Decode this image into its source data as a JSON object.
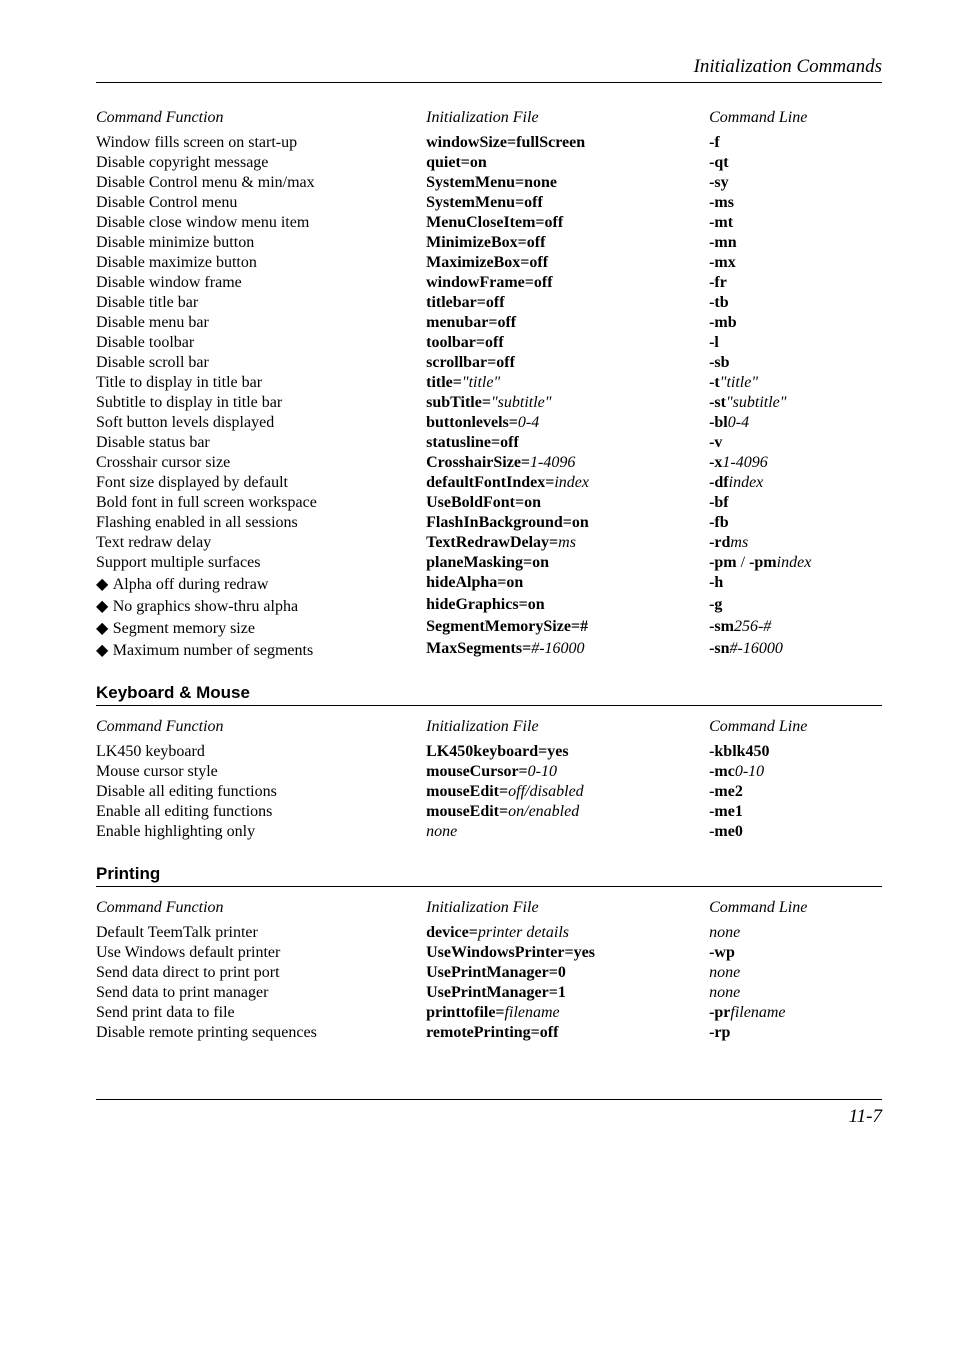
{
  "running_head": "Initialization Commands",
  "cols": {
    "c1": "Command Function",
    "c2": "Initialization File",
    "c3": "Command Line"
  },
  "main": [
    {
      "f": {
        "t": "Window fills screen on start-up"
      },
      "i": {
        "b": "windowSize=fullScreen"
      },
      "c": {
        "b": "-f"
      }
    },
    {
      "f": {
        "t": "Disable copyright message"
      },
      "i": {
        "b": "quiet=on"
      },
      "c": {
        "b": "-qt"
      }
    },
    {
      "f": {
        "t": "Disable Control menu & min/max"
      },
      "i": {
        "b": "SystemMenu=none"
      },
      "c": {
        "b": "-sy"
      }
    },
    {
      "f": {
        "t": "Disable Control menu"
      },
      "i": {
        "b": "SystemMenu=off"
      },
      "c": {
        "b": "-ms"
      }
    },
    {
      "f": {
        "t": "Disable close window menu item"
      },
      "i": {
        "b": "MenuCloseItem=off"
      },
      "c": {
        "b": "-mt"
      }
    },
    {
      "f": {
        "t": "Disable minimize button"
      },
      "i": {
        "b": "MinimizeBox=off"
      },
      "c": {
        "b": "-mn"
      }
    },
    {
      "f": {
        "t": "Disable maximize button"
      },
      "i": {
        "b": "MaximizeBox=off"
      },
      "c": {
        "b": "-mx"
      }
    },
    {
      "f": {
        "t": "Disable window frame"
      },
      "i": {
        "b": "windowFrame=off"
      },
      "c": {
        "b": "-fr"
      }
    },
    {
      "f": {
        "t": "Disable title bar"
      },
      "i": {
        "b": "titlebar=off"
      },
      "c": {
        "b": "-tb"
      }
    },
    {
      "f": {
        "t": "Disable menu bar"
      },
      "i": {
        "b": "menubar=off"
      },
      "c": {
        "b": "-mb"
      }
    },
    {
      "f": {
        "t": "Disable toolbar"
      },
      "i": {
        "b": "toolbar=off"
      },
      "c": {
        "b": "-l"
      }
    },
    {
      "f": {
        "t": "Disable scroll bar"
      },
      "i": {
        "b": "scrollbar=off"
      },
      "c": {
        "b": "-sb"
      }
    },
    {
      "f": {
        "t": "Title to display in title bar"
      },
      "i": {
        "b": "title=",
        "ai": "\"title\""
      },
      "c": {
        "b": "-t",
        "ai": "\"title\""
      }
    },
    {
      "f": {
        "t": "Subtitle to display in title bar"
      },
      "i": {
        "b": "subTitle=",
        "ai": "\"subtitle\""
      },
      "c": {
        "b": "-st",
        "ai": "\"subtitle\""
      }
    },
    {
      "f": {
        "t": "Soft button levels displayed"
      },
      "i": {
        "b": "buttonlevels=",
        "ai": "0-4"
      },
      "c": {
        "b": "-bl",
        "ai": "0-4"
      }
    },
    {
      "f": {
        "t": "Disable status bar"
      },
      "i": {
        "b": "statusline=off"
      },
      "c": {
        "b": "-v"
      }
    },
    {
      "f": {
        "t": "Crosshair cursor size"
      },
      "i": {
        "b": "CrosshairSize=",
        "ai": "1-4096"
      },
      "c": {
        "b": "-x",
        "ai": "1-4096"
      }
    },
    {
      "f": {
        "t": "Font size displayed by default"
      },
      "i": {
        "b": "defaultFontIndex=",
        "ai": "index"
      },
      "c": {
        "b": "-df",
        "ai": "index"
      }
    },
    {
      "f": {
        "t": "Bold font in full screen workspace"
      },
      "i": {
        "b": "UseBoldFont=on"
      },
      "c": {
        "b": "-bf"
      }
    },
    {
      "f": {
        "t": "Flashing enabled in all sessions"
      },
      "i": {
        "b": "FlashInBackground=on"
      },
      "c": {
        "b": "-fb"
      }
    },
    {
      "f": {
        "t": "Text redraw delay"
      },
      "i": {
        "b": "TextRedrawDelay=",
        "ai": "ms"
      },
      "c": {
        "b": "-rd",
        "ai": "ms"
      }
    },
    {
      "f": {
        "t": "Support multiple surfaces"
      },
      "i": {
        "b": "planeMasking=on"
      },
      "c": {
        "b": "-pm",
        "t2": " / ",
        "b2": "-pm",
        "ai": "index"
      }
    },
    {
      "f": {
        "d": true,
        "t": "Alpha off during redraw"
      },
      "i": {
        "b": "hideAlpha=on"
      },
      "c": {
        "b": "-h"
      }
    },
    {
      "f": {
        "d": true,
        "t": "No graphics show-thru alpha"
      },
      "i": {
        "b": "hideGraphics=on"
      },
      "c": {
        "b": "-g"
      }
    },
    {
      "f": {
        "d": true,
        "t": "Segment memory size"
      },
      "i": {
        "b": "SegmentMemorySize=#"
      },
      "c": {
        "b": "-sm",
        "ai": "256-#"
      }
    },
    {
      "f": {
        "d": true,
        "t": "Maximum number of segments"
      },
      "i": {
        "b": "MaxSegments=",
        "ai": "#-16000"
      },
      "c": {
        "b": "-sn",
        "ai": "#-16000"
      }
    }
  ],
  "kb_heading": "Keyboard & Mouse",
  "kb": [
    {
      "f": {
        "t": "LK450 keyboard"
      },
      "i": {
        "b": "LK450keyboard=yes"
      },
      "c": {
        "b": "-kblk450"
      }
    },
    {
      "f": {
        "t": "Mouse cursor style"
      },
      "i": {
        "b": "mouseCursor=",
        "ai": "0-10"
      },
      "c": {
        "b": "-mc",
        "ai": "0-10"
      }
    },
    {
      "f": {
        "t": "Disable all editing functions"
      },
      "i": {
        "b": "mouseEdit=",
        "ai": "off/disabled"
      },
      "c": {
        "b": "-me2"
      }
    },
    {
      "f": {
        "t": "Enable all editing functions"
      },
      "i": {
        "b": "mouseEdit=",
        "ai": "on/enabled"
      },
      "c": {
        "b": "-me1"
      }
    },
    {
      "f": {
        "t": "Enable highlighting only"
      },
      "i": {
        "ai": "none"
      },
      "c": {
        "b": "-me0"
      }
    }
  ],
  "pr_heading": "Printing",
  "pr": [
    {
      "f": {
        "t": "Default TeemTalk printer"
      },
      "i": {
        "b": "device=",
        "ai": "printer details"
      },
      "c": {
        "ai": "none"
      }
    },
    {
      "f": {
        "t": "Use Windows default printer"
      },
      "i": {
        "b": "UseWindowsPrinter=yes"
      },
      "c": {
        "b": "-wp"
      }
    },
    {
      "f": {
        "t": "Send data direct to print port"
      },
      "i": {
        "b": "UsePrintManager=0"
      },
      "c": {
        "ai": "none"
      }
    },
    {
      "f": {
        "t": "Send data to print manager"
      },
      "i": {
        "b": "UsePrintManager=1"
      },
      "c": {
        "ai": "none"
      }
    },
    {
      "f": {
        "t": "Send print data to file"
      },
      "i": {
        "b": "printtofile=",
        "ai": "filename"
      },
      "c": {
        "b": "-pr",
        "ai": "filename"
      }
    },
    {
      "f": {
        "t": "Disable remote printing sequences"
      },
      "i": {
        "b": "remotePrinting=off"
      },
      "c": {
        "b": "-rp"
      }
    }
  ],
  "page_num": "11-7"
}
